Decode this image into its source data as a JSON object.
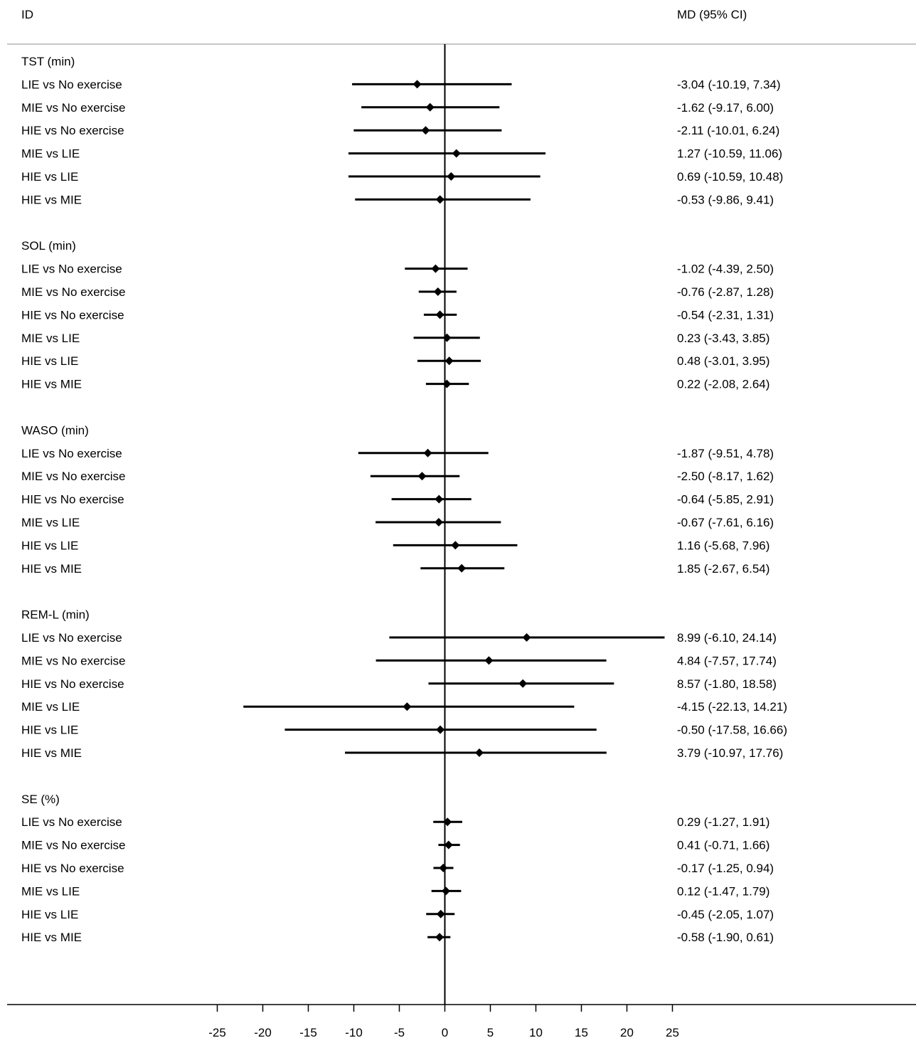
{
  "chart_data": {
    "type": "forest",
    "header": {
      "id": "ID",
      "effect": "MD (95% CI)"
    },
    "x_ticks": [
      -25,
      -20,
      -15,
      -10,
      -5,
      0,
      5,
      10,
      15,
      20,
      25
    ],
    "xlim": [
      -25,
      25
    ],
    "reference_line": 0,
    "groups": [
      {
        "title": "TST (min)",
        "rows": [
          {
            "label": "LIE vs No exercise",
            "md": -3.04,
            "lo": -10.19,
            "hi": 7.34,
            "text": "-3.04 (-10.19, 7.34)"
          },
          {
            "label": "MIE vs No exercise",
            "md": -1.62,
            "lo": -9.17,
            "hi": 6.0,
            "text": "-1.62 (-9.17, 6.00)"
          },
          {
            "label": "HIE vs No exercise",
            "md": -2.11,
            "lo": -10.01,
            "hi": 6.24,
            "text": "-2.11 (-10.01, 6.24)"
          },
          {
            "label": "MIE vs LIE",
            "md": 1.27,
            "lo": -10.59,
            "hi": 11.06,
            "text": "1.27 (-10.59, 11.06)"
          },
          {
            "label": "HIE vs LIE",
            "md": 0.69,
            "lo": -10.59,
            "hi": 10.48,
            "text": "0.69 (-10.59, 10.48)"
          },
          {
            "label": "HIE vs MIE",
            "md": -0.53,
            "lo": -9.86,
            "hi": 9.41,
            "text": "-0.53 (-9.86, 9.41)"
          }
        ]
      },
      {
        "title": "SOL (min)",
        "rows": [
          {
            "label": "LIE vs No exercise",
            "md": -1.02,
            "lo": -4.39,
            "hi": 2.5,
            "text": "-1.02 (-4.39, 2.50)"
          },
          {
            "label": "MIE vs No exercise",
            "md": -0.76,
            "lo": -2.87,
            "hi": 1.28,
            "text": "-0.76 (-2.87, 1.28)"
          },
          {
            "label": "HIE vs No exercise",
            "md": -0.54,
            "lo": -2.31,
            "hi": 1.31,
            "text": "-0.54 (-2.31, 1.31)"
          },
          {
            "label": "MIE vs LIE",
            "md": 0.23,
            "lo": -3.43,
            "hi": 3.85,
            "text": "0.23 (-3.43, 3.85)"
          },
          {
            "label": "HIE vs LIE",
            "md": 0.48,
            "lo": -3.01,
            "hi": 3.95,
            "text": "0.48 (-3.01, 3.95)"
          },
          {
            "label": "HIE vs MIE",
            "md": 0.22,
            "lo": -2.08,
            "hi": 2.64,
            "text": "0.22 (-2.08, 2.64)"
          }
        ]
      },
      {
        "title": "WASO (min)",
        "rows": [
          {
            "label": "LIE vs No exercise",
            "md": -1.87,
            "lo": -9.51,
            "hi": 4.78,
            "text": "-1.87 (-9.51, 4.78)"
          },
          {
            "label": "MIE vs No exercise",
            "md": -2.5,
            "lo": -8.17,
            "hi": 1.62,
            "text": "-2.50 (-8.17, 1.62)"
          },
          {
            "label": "HIE vs No exercise",
            "md": -0.64,
            "lo": -5.85,
            "hi": 2.91,
            "text": "-0.64 (-5.85, 2.91)"
          },
          {
            "label": "MIE vs LIE",
            "md": -0.67,
            "lo": -7.61,
            "hi": 6.16,
            "text": "-0.67 (-7.61, 6.16)"
          },
          {
            "label": "HIE vs LIE",
            "md": 1.16,
            "lo": -5.68,
            "hi": 7.96,
            "text": "1.16 (-5.68, 7.96)"
          },
          {
            "label": "HIE vs MIE",
            "md": 1.85,
            "lo": -2.67,
            "hi": 6.54,
            "text": "1.85 (-2.67, 6.54)"
          }
        ]
      },
      {
        "title": "REM-L (min)",
        "rows": [
          {
            "label": "LIE vs No exercise",
            "md": 8.99,
            "lo": -6.1,
            "hi": 24.14,
            "text": "8.99 (-6.10, 24.14)"
          },
          {
            "label": "MIE vs No exercise",
            "md": 4.84,
            "lo": -7.57,
            "hi": 17.74,
            "text": "4.84 (-7.57, 17.74)"
          },
          {
            "label": "HIE vs No exercise",
            "md": 8.57,
            "lo": -1.8,
            "hi": 18.58,
            "text": "8.57 (-1.80, 18.58)"
          },
          {
            "label": "MIE vs LIE",
            "md": -4.15,
            "lo": -22.13,
            "hi": 14.21,
            "text": "-4.15 (-22.13, 14.21)"
          },
          {
            "label": "HIE vs LIE",
            "md": -0.5,
            "lo": -17.58,
            "hi": 16.66,
            "text": "-0.50 (-17.58, 16.66)"
          },
          {
            "label": "HIE vs MIE",
            "md": 3.79,
            "lo": -10.97,
            "hi": 17.76,
            "text": "3.79 (-10.97, 17.76)"
          }
        ]
      },
      {
        "title": "SE (%)",
        "rows": [
          {
            "label": "LIE vs No exercise",
            "md": 0.29,
            "lo": -1.27,
            "hi": 1.91,
            "text": "0.29 (-1.27, 1.91)"
          },
          {
            "label": "MIE vs No exercise",
            "md": 0.41,
            "lo": -0.71,
            "hi": 1.66,
            "text": "0.41 (-0.71, 1.66)"
          },
          {
            "label": "HIE vs No exercise",
            "md": -0.17,
            "lo": -1.25,
            "hi": 0.94,
            "text": "-0.17 (-1.25, 0.94)"
          },
          {
            "label": "MIE vs LIE",
            "md": 0.12,
            "lo": -1.47,
            "hi": 1.79,
            "text": "0.12 (-1.47, 1.79)"
          },
          {
            "label": "HIE vs LIE",
            "md": -0.45,
            "lo": -2.05,
            "hi": 1.07,
            "text": "-0.45 (-2.05, 1.07)"
          },
          {
            "label": "HIE vs MIE",
            "md": -0.58,
            "lo": -1.9,
            "hi": 0.61,
            "text": "-0.58 (-1.90, 0.61)"
          }
        ]
      }
    ]
  }
}
